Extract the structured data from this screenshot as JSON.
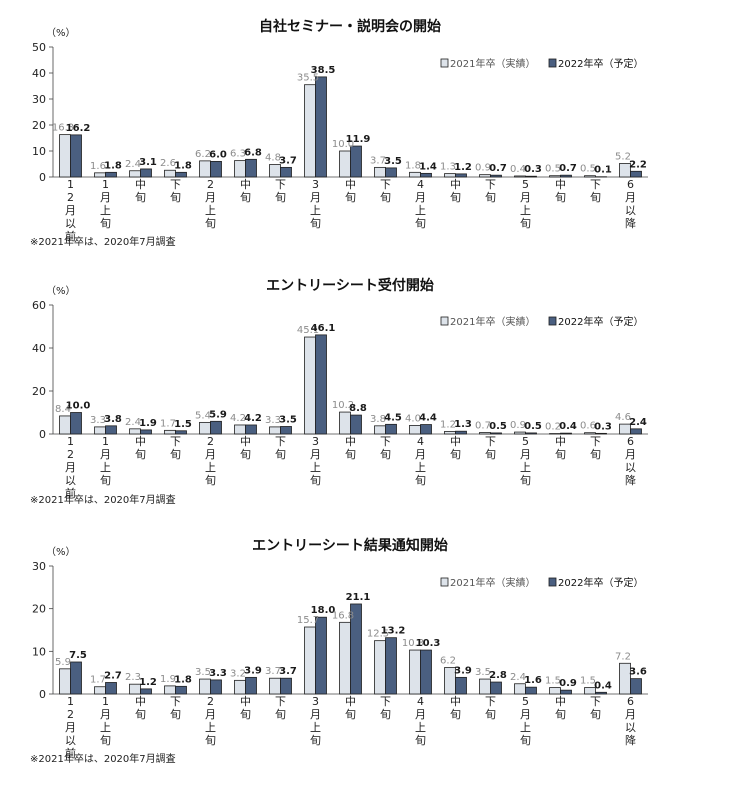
{
  "legend": {
    "series_2021": "2021年卒（実績）",
    "series_2022": "2022年卒（予定）"
  },
  "colors": {
    "series_2021_fill": "#dde3ea",
    "series_2022_fill": "#4a5f80",
    "stroke": "#1f1f1f",
    "label_2021": "#8c8c8c",
    "label_2022": "#1a1a1a"
  },
  "category_labels": [
    "12月以前",
    "1月上旬",
    "中旬",
    "下旬",
    "2月上旬",
    "中旬",
    "下旬",
    "3月上旬",
    "中旬",
    "下旬",
    "4月上旬",
    "中旬",
    "下旬",
    "5月上旬",
    "中旬",
    "下旬",
    "6月以降"
  ],
  "chart_data": [
    {
      "type": "bar",
      "title": "自社セミナー・説明会の開始",
      "ylabel": "（%）",
      "ylim": [
        0,
        50
      ],
      "yticks": [
        0,
        10,
        20,
        30,
        40,
        50
      ],
      "note": "※2021年卒は、2020年7月調査",
      "legend_position": "top-right",
      "series": [
        {
          "name": "2021年卒（実績）",
          "values": [
            16.3,
            1.6,
            2.4,
            2.6,
            6.2,
            6.3,
            4.8,
            35.5,
            10.0,
            3.7,
            1.8,
            1.3,
            0.9,
            0.4,
            0.5,
            0.5,
            5.2
          ]
        },
        {
          "name": "2022年卒（予定）",
          "values": [
            16.2,
            1.8,
            3.1,
            1.8,
            6.0,
            6.8,
            3.7,
            38.5,
            11.9,
            3.5,
            1.4,
            1.2,
            0.7,
            0.3,
            0.7,
            0.1,
            2.2
          ]
        }
      ]
    },
    {
      "type": "bar",
      "title": "エントリーシート受付開始",
      "ylabel": "（%）",
      "ylim": [
        0,
        60
      ],
      "yticks": [
        0,
        20,
        40,
        60
      ],
      "note": "※2021年卒は、2020年7月調査",
      "legend_position": "top-right",
      "series": [
        {
          "name": "2021年卒（実績）",
          "values": [
            8.4,
            3.3,
            2.4,
            1.7,
            5.4,
            4.2,
            3.3,
            45.1,
            10.2,
            3.8,
            4.0,
            1.2,
            0.7,
            0.9,
            0.2,
            0.6,
            4.6
          ]
        },
        {
          "name": "2022年卒（予定）",
          "values": [
            10.0,
            3.8,
            1.9,
            1.5,
            5.9,
            4.2,
            3.5,
            46.1,
            8.8,
            4.5,
            4.4,
            1.3,
            0.5,
            0.5,
            0.4,
            0.3,
            2.4
          ]
        }
      ]
    },
    {
      "type": "bar",
      "title": "エントリーシート結果通知開始",
      "ylabel": "（%）",
      "ylim": [
        0,
        30
      ],
      "yticks": [
        0,
        10,
        20,
        30
      ],
      "note": "※2021年卒は、2020年7月調査",
      "legend_position": "top-right",
      "series": [
        {
          "name": "2021年卒（実績）",
          "values": [
            5.9,
            1.7,
            2.3,
            1.9,
            3.5,
            3.2,
            3.7,
            15.7,
            16.8,
            12.5,
            10.3,
            6.2,
            3.5,
            2.4,
            1.5,
            1.5,
            7.2
          ]
        },
        {
          "name": "2022年卒（予定）",
          "values": [
            7.5,
            2.7,
            1.2,
            1.8,
            3.3,
            3.9,
            3.7,
            18.0,
            21.1,
            13.2,
            10.3,
            3.9,
            2.8,
            1.6,
            0.9,
            0.4,
            3.6
          ]
        }
      ]
    }
  ]
}
